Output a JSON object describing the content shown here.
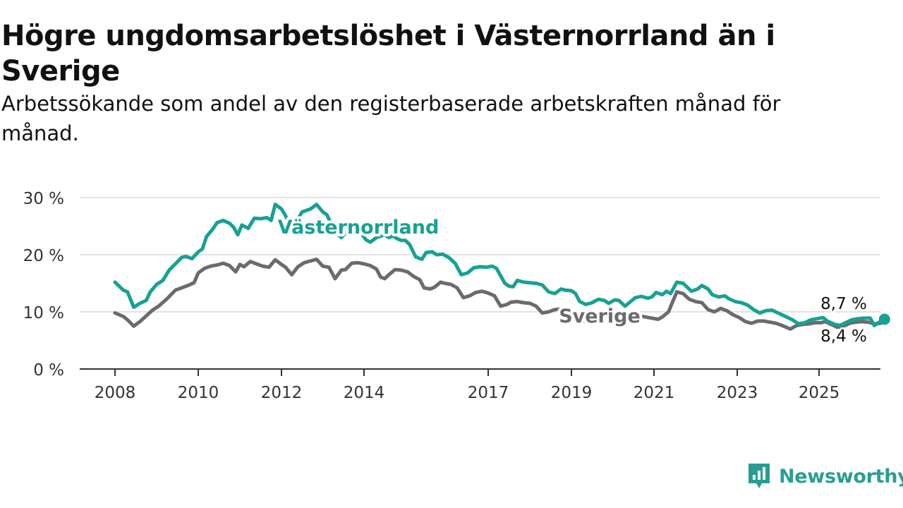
{
  "title": "Högre ungdomsarbetslöshet i Västernorrland än i Sverige",
  "subtitle": "Arbetssökande som andel av den registerbaserade arbetskraften månad för månad.",
  "brand": {
    "name": "Newsworthy",
    "color": "#2a9d93",
    "icon": "newsworthy-logo-icon"
  },
  "chart_data": {
    "type": "line",
    "title": "Högre ungdomsarbetslöshet i Västernorrland än i Sverige",
    "subtitle": "Arbetssökande som andel av den registerbaserade arbetskraften månad för månad.",
    "xlabel": "",
    "ylabel": "",
    "x_ticks": [
      "2008",
      "2010",
      "2012",
      "2014",
      "2017",
      "2019",
      "2021",
      "2023",
      "2025"
    ],
    "y_ticks": [
      "0 %",
      "10 %",
      "20 %",
      "30 %"
    ],
    "xlim": [
      2008.0,
      2027.5
    ],
    "ylim": [
      0,
      30
    ],
    "grid": "horizontal",
    "legend": "inline labels",
    "series": [
      {
        "name": "Västernorrland",
        "color": "#17a194",
        "label_position": "middle",
        "end_label": "8,7 %",
        "points": [
          [
            2008.0,
            15.2
          ],
          [
            2008.2,
            13.8
          ],
          [
            2008.3,
            13.5
          ],
          [
            2008.45,
            10.8
          ],
          [
            2008.6,
            11.5
          ],
          [
            2008.75,
            12.0
          ],
          [
            2008.85,
            13.5
          ],
          [
            2009.0,
            14.8
          ],
          [
            2009.15,
            15.5
          ],
          [
            2009.3,
            17.3
          ],
          [
            2009.45,
            18.4
          ],
          [
            2009.6,
            19.5
          ],
          [
            2009.7,
            19.7
          ],
          [
            2009.85,
            19.3
          ],
          [
            2010.0,
            20.5
          ],
          [
            2010.1,
            21.0
          ],
          [
            2010.2,
            23.2
          ],
          [
            2010.35,
            24.5
          ],
          [
            2010.45,
            25.6
          ],
          [
            2010.6,
            26.0
          ],
          [
            2010.75,
            25.5
          ],
          [
            2010.85,
            24.8
          ],
          [
            2010.95,
            23.5
          ],
          [
            2011.05,
            25.2
          ],
          [
            2011.2,
            24.6
          ],
          [
            2011.35,
            26.4
          ],
          [
            2011.5,
            26.3
          ],
          [
            2011.65,
            26.5
          ],
          [
            2011.75,
            26.0
          ],
          [
            2011.85,
            28.8
          ],
          [
            2012.0,
            28.0
          ],
          [
            2012.1,
            26.8
          ],
          [
            2012.2,
            25.2
          ],
          [
            2012.3,
            26.0
          ],
          [
            2012.4,
            26.3
          ],
          [
            2012.5,
            27.5
          ],
          [
            2012.7,
            28.0
          ],
          [
            2012.85,
            28.8
          ],
          [
            2013.0,
            27.5
          ],
          [
            2013.1,
            27.0
          ],
          [
            2013.3,
            24.0
          ],
          [
            2013.45,
            23.0
          ],
          [
            2013.6,
            24.2
          ],
          [
            2013.75,
            23.6
          ],
          [
            2013.9,
            24.0
          ],
          [
            2014.05,
            22.6
          ],
          [
            2014.15,
            22.2
          ],
          [
            2014.3,
            23.0
          ],
          [
            2014.5,
            23.5
          ],
          [
            2014.6,
            23.0
          ],
          [
            2014.7,
            23.3
          ],
          [
            2014.8,
            22.8
          ],
          [
            2014.9,
            22.5
          ],
          [
            2015.0,
            22.5
          ],
          [
            2015.1,
            21.8
          ],
          [
            2015.25,
            19.6
          ],
          [
            2015.4,
            19.2
          ],
          [
            2015.5,
            20.4
          ],
          [
            2015.65,
            20.5
          ],
          [
            2015.75,
            20.0
          ],
          [
            2015.9,
            20.1
          ],
          [
            2016.05,
            19.5
          ],
          [
            2016.2,
            18.5
          ],
          [
            2016.35,
            16.5
          ],
          [
            2016.5,
            16.8
          ],
          [
            2016.65,
            17.7
          ],
          [
            2016.8,
            17.9
          ],
          [
            2016.95,
            17.8
          ],
          [
            2017.1,
            18.0
          ],
          [
            2017.2,
            17.6
          ],
          [
            2017.4,
            15.0
          ],
          [
            2017.5,
            14.5
          ],
          [
            2017.6,
            14.4
          ],
          [
            2017.7,
            15.5
          ],
          [
            2017.85,
            15.2
          ],
          [
            2018.0,
            15.1
          ],
          [
            2018.15,
            15.0
          ],
          [
            2018.3,
            14.7
          ],
          [
            2018.45,
            13.5
          ],
          [
            2018.6,
            13.2
          ],
          [
            2018.75,
            14.0
          ],
          [
            2018.85,
            13.8
          ],
          [
            2019.0,
            13.7
          ],
          [
            2019.1,
            13.2
          ],
          [
            2019.2,
            11.8
          ],
          [
            2019.35,
            11.3
          ],
          [
            2019.5,
            11.6
          ],
          [
            2019.65,
            12.2
          ],
          [
            2019.8,
            12.0
          ],
          [
            2019.9,
            11.5
          ],
          [
            2020.05,
            12.1
          ],
          [
            2020.15,
            12.0
          ],
          [
            2020.3,
            11.0
          ],
          [
            2020.4,
            11.6
          ],
          [
            2020.55,
            12.5
          ],
          [
            2020.7,
            12.7
          ],
          [
            2020.85,
            12.4
          ],
          [
            2020.95,
            12.6
          ],
          [
            2021.05,
            13.4
          ],
          [
            2021.2,
            13.0
          ],
          [
            2021.3,
            13.6
          ],
          [
            2021.4,
            13.2
          ],
          [
            2021.55,
            15.2
          ],
          [
            2021.7,
            15.0
          ],
          [
            2021.8,
            14.3
          ],
          [
            2021.9,
            13.6
          ],
          [
            2022.05,
            14.0
          ],
          [
            2022.15,
            14.6
          ],
          [
            2022.3,
            14.0
          ],
          [
            2022.4,
            13.0
          ],
          [
            2022.55,
            12.6
          ],
          [
            2022.7,
            12.8
          ],
          [
            2022.8,
            12.3
          ],
          [
            2022.95,
            11.8
          ],
          [
            2023.1,
            11.6
          ],
          [
            2023.25,
            11.2
          ],
          [
            2023.4,
            10.4
          ],
          [
            2023.55,
            9.8
          ],
          [
            2023.7,
            10.2
          ],
          [
            2023.85,
            10.3
          ],
          [
            2024.0,
            9.8
          ],
          [
            2024.15,
            9.3
          ],
          [
            2024.35,
            8.6
          ],
          [
            2024.5,
            7.9
          ],
          [
            2024.65,
            8.1
          ],
          [
            2024.8,
            8.6
          ],
          [
            2024.95,
            8.8
          ],
          [
            2025.1,
            9.0
          ],
          [
            2025.2,
            8.4
          ],
          [
            2025.35,
            7.9
          ],
          [
            2025.5,
            7.6
          ],
          [
            2025.65,
            8.1
          ],
          [
            2025.8,
            8.6
          ],
          [
            2025.95,
            8.8
          ],
          [
            2026.1,
            8.9
          ],
          [
            2026.25,
            8.9
          ],
          [
            2026.35,
            7.6
          ],
          [
            2026.45,
            8.1
          ],
          [
            2026.6,
            8.7
          ]
        ]
      },
      {
        "name": "Sverige",
        "color": "#6b6a70",
        "label_position": "middle",
        "end_label": "8,4 %",
        "points": [
          [
            2008.0,
            9.8
          ],
          [
            2008.2,
            9.2
          ],
          [
            2008.3,
            8.6
          ],
          [
            2008.45,
            7.5
          ],
          [
            2008.6,
            8.3
          ],
          [
            2008.75,
            9.3
          ],
          [
            2008.9,
            10.3
          ],
          [
            2009.05,
            11.0
          ],
          [
            2009.25,
            12.3
          ],
          [
            2009.45,
            13.8
          ],
          [
            2009.6,
            14.2
          ],
          [
            2009.75,
            14.6
          ],
          [
            2009.9,
            15.1
          ],
          [
            2010.0,
            16.8
          ],
          [
            2010.15,
            17.6
          ],
          [
            2010.3,
            18.0
          ],
          [
            2010.45,
            18.2
          ],
          [
            2010.6,
            18.5
          ],
          [
            2010.75,
            18.1
          ],
          [
            2010.9,
            17.0
          ],
          [
            2011.0,
            18.3
          ],
          [
            2011.1,
            17.9
          ],
          [
            2011.25,
            18.8
          ],
          [
            2011.4,
            18.4
          ],
          [
            2011.55,
            18.0
          ],
          [
            2011.7,
            17.8
          ],
          [
            2011.85,
            19.1
          ],
          [
            2012.0,
            18.3
          ],
          [
            2012.1,
            17.8
          ],
          [
            2012.25,
            16.5
          ],
          [
            2012.4,
            17.9
          ],
          [
            2012.55,
            18.6
          ],
          [
            2012.7,
            18.9
          ],
          [
            2012.85,
            19.2
          ],
          [
            2013.0,
            18.0
          ],
          [
            2013.15,
            17.8
          ],
          [
            2013.3,
            15.8
          ],
          [
            2013.45,
            17.3
          ],
          [
            2013.55,
            17.4
          ],
          [
            2013.7,
            18.5
          ],
          [
            2013.85,
            18.6
          ],
          [
            2014.0,
            18.4
          ],
          [
            2014.15,
            18.1
          ],
          [
            2014.3,
            17.5
          ],
          [
            2014.4,
            16.1
          ],
          [
            2014.5,
            15.8
          ],
          [
            2014.6,
            16.5
          ],
          [
            2014.75,
            17.4
          ],
          [
            2014.9,
            17.3
          ],
          [
            2015.05,
            17.0
          ],
          [
            2015.2,
            16.2
          ],
          [
            2015.35,
            15.6
          ],
          [
            2015.45,
            14.2
          ],
          [
            2015.6,
            14.0
          ],
          [
            2015.7,
            14.3
          ],
          [
            2015.85,
            15.2
          ],
          [
            2015.95,
            15.0
          ],
          [
            2016.1,
            14.8
          ],
          [
            2016.25,
            14.2
          ],
          [
            2016.4,
            12.5
          ],
          [
            2016.55,
            12.8
          ],
          [
            2016.7,
            13.4
          ],
          [
            2016.85,
            13.6
          ],
          [
            2017.0,
            13.3
          ],
          [
            2017.15,
            12.8
          ],
          [
            2017.3,
            11.0
          ],
          [
            2017.45,
            11.3
          ],
          [
            2017.55,
            11.7
          ],
          [
            2017.7,
            11.8
          ],
          [
            2017.85,
            11.6
          ],
          [
            2018.0,
            11.5
          ],
          [
            2018.15,
            11.0
          ],
          [
            2018.3,
            9.8
          ],
          [
            2018.45,
            10.0
          ],
          [
            2018.6,
            10.4
          ],
          [
            2018.75,
            10.5
          ],
          [
            2018.9,
            10.2
          ],
          [
            2019.0,
            9.7
          ],
          [
            2019.15,
            9.4
          ],
          [
            2019.3,
            8.4
          ],
          [
            2019.4,
            8.8
          ],
          [
            2019.5,
            9.0
          ],
          [
            2019.65,
            9.2
          ],
          [
            2019.8,
            9.3
          ],
          [
            2019.95,
            9.1
          ],
          [
            2020.1,
            8.8
          ],
          [
            2020.25,
            8.2
          ],
          [
            2020.35,
            8.7
          ],
          [
            2020.5,
            8.9
          ],
          [
            2020.65,
            9.3
          ],
          [
            2020.8,
            9.1
          ],
          [
            2020.95,
            8.9
          ],
          [
            2021.1,
            8.7
          ],
          [
            2021.2,
            9.1
          ],
          [
            2021.35,
            10.0
          ],
          [
            2021.45,
            11.8
          ],
          [
            2021.55,
            13.5
          ],
          [
            2021.7,
            13.2
          ],
          [
            2021.85,
            12.2
          ],
          [
            2022.0,
            11.8
          ],
          [
            2022.15,
            11.6
          ],
          [
            2022.3,
            10.4
          ],
          [
            2022.45,
            10.0
          ],
          [
            2022.6,
            10.6
          ],
          [
            2022.75,
            10.2
          ],
          [
            2022.9,
            9.5
          ],
          [
            2023.05,
            9.0
          ],
          [
            2023.2,
            8.3
          ],
          [
            2023.35,
            8.0
          ],
          [
            2023.5,
            8.4
          ],
          [
            2023.65,
            8.4
          ],
          [
            2023.8,
            8.2
          ],
          [
            2023.95,
            8.0
          ],
          [
            2024.1,
            7.6
          ],
          [
            2024.3,
            7.0
          ],
          [
            2024.45,
            7.6
          ],
          [
            2024.6,
            7.8
          ],
          [
            2024.75,
            7.9
          ],
          [
            2024.9,
            8.1
          ],
          [
            2025.05,
            8.1
          ],
          [
            2025.15,
            8.3
          ],
          [
            2025.3,
            7.8
          ],
          [
            2025.45,
            7.3
          ],
          [
            2025.6,
            7.5
          ],
          [
            2025.75,
            8.0
          ],
          [
            2025.9,
            8.2
          ],
          [
            2026.05,
            8.3
          ],
          [
            2026.2,
            8.2
          ],
          [
            2026.35,
            7.9
          ],
          [
            2026.5,
            8.0
          ],
          [
            2026.6,
            8.4
          ]
        ]
      }
    ]
  }
}
